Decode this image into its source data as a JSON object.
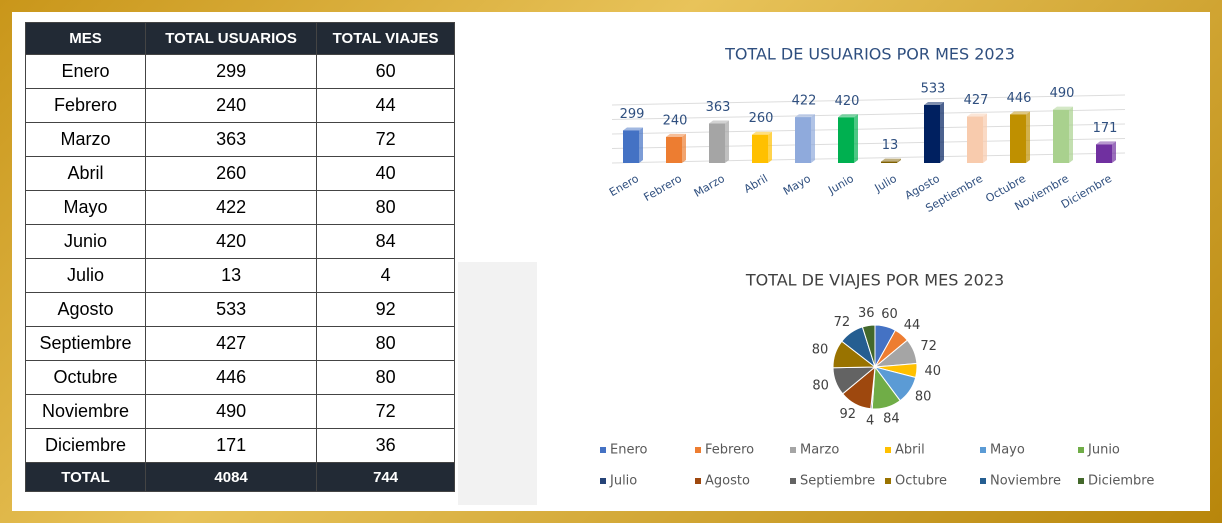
{
  "table": {
    "header": [
      "MES",
      "TOTAL USUARIOS",
      "TOTAL VIAJES"
    ],
    "rows": [
      [
        "Enero",
        "299",
        "60"
      ],
      [
        "Febrero",
        "240",
        "44"
      ],
      [
        "Marzo",
        "363",
        "72"
      ],
      [
        "Abril",
        "260",
        "40"
      ],
      [
        "Mayo",
        "422",
        "80"
      ],
      [
        "Junio",
        "420",
        "84"
      ],
      [
        "Julio",
        "13",
        "4"
      ],
      [
        "Agosto",
        "533",
        "92"
      ],
      [
        "Septiembre",
        "427",
        "80"
      ],
      [
        "Octubre",
        "446",
        "80"
      ],
      [
        "Noviembre",
        "490",
        "72"
      ],
      [
        "Diciembre",
        "171",
        "36"
      ]
    ],
    "footer": [
      "TOTAL",
      "4084",
      "744"
    ]
  },
  "chart_data": [
    {
      "type": "bar",
      "title": "TOTAL DE USUARIOS POR MES 2023",
      "categories": [
        "Enero",
        "Febrero",
        "Marzo",
        "Abril",
        "Mayo",
        "Junio",
        "Julio",
        "Agosto",
        "Septiembre",
        "Octubre",
        "Noviembre",
        "Diciembre"
      ],
      "values": [
        299,
        240,
        363,
        260,
        422,
        420,
        13,
        533,
        427,
        446,
        490,
        171
      ],
      "colors": [
        "#4472c4",
        "#ed7d31",
        "#a5a5a5",
        "#ffc000",
        "#8faadc",
        "#00b050",
        "#7f6000",
        "#002060",
        "#f8cbad",
        "#bf9000",
        "#a9d18e",
        "#7030a0"
      ],
      "grid": true
    },
    {
      "type": "pie",
      "title": "TOTAL DE VIAJES POR MES 2023",
      "categories": [
        "Enero",
        "Febrero",
        "Marzo",
        "Abril",
        "Mayo",
        "Junio",
        "Julio",
        "Agosto",
        "Septiembre",
        "Octubre",
        "Noviembre",
        "Diciembre"
      ],
      "values": [
        60,
        44,
        72,
        40,
        80,
        84,
        4,
        92,
        80,
        80,
        72,
        36
      ],
      "colors": [
        "#4472c4",
        "#ed7d31",
        "#a5a5a5",
        "#ffc000",
        "#5b9bd5",
        "#70ad47",
        "#264478",
        "#9e480e",
        "#636363",
        "#997300",
        "#255e91",
        "#43682b"
      ],
      "legend": "bottom"
    }
  ]
}
